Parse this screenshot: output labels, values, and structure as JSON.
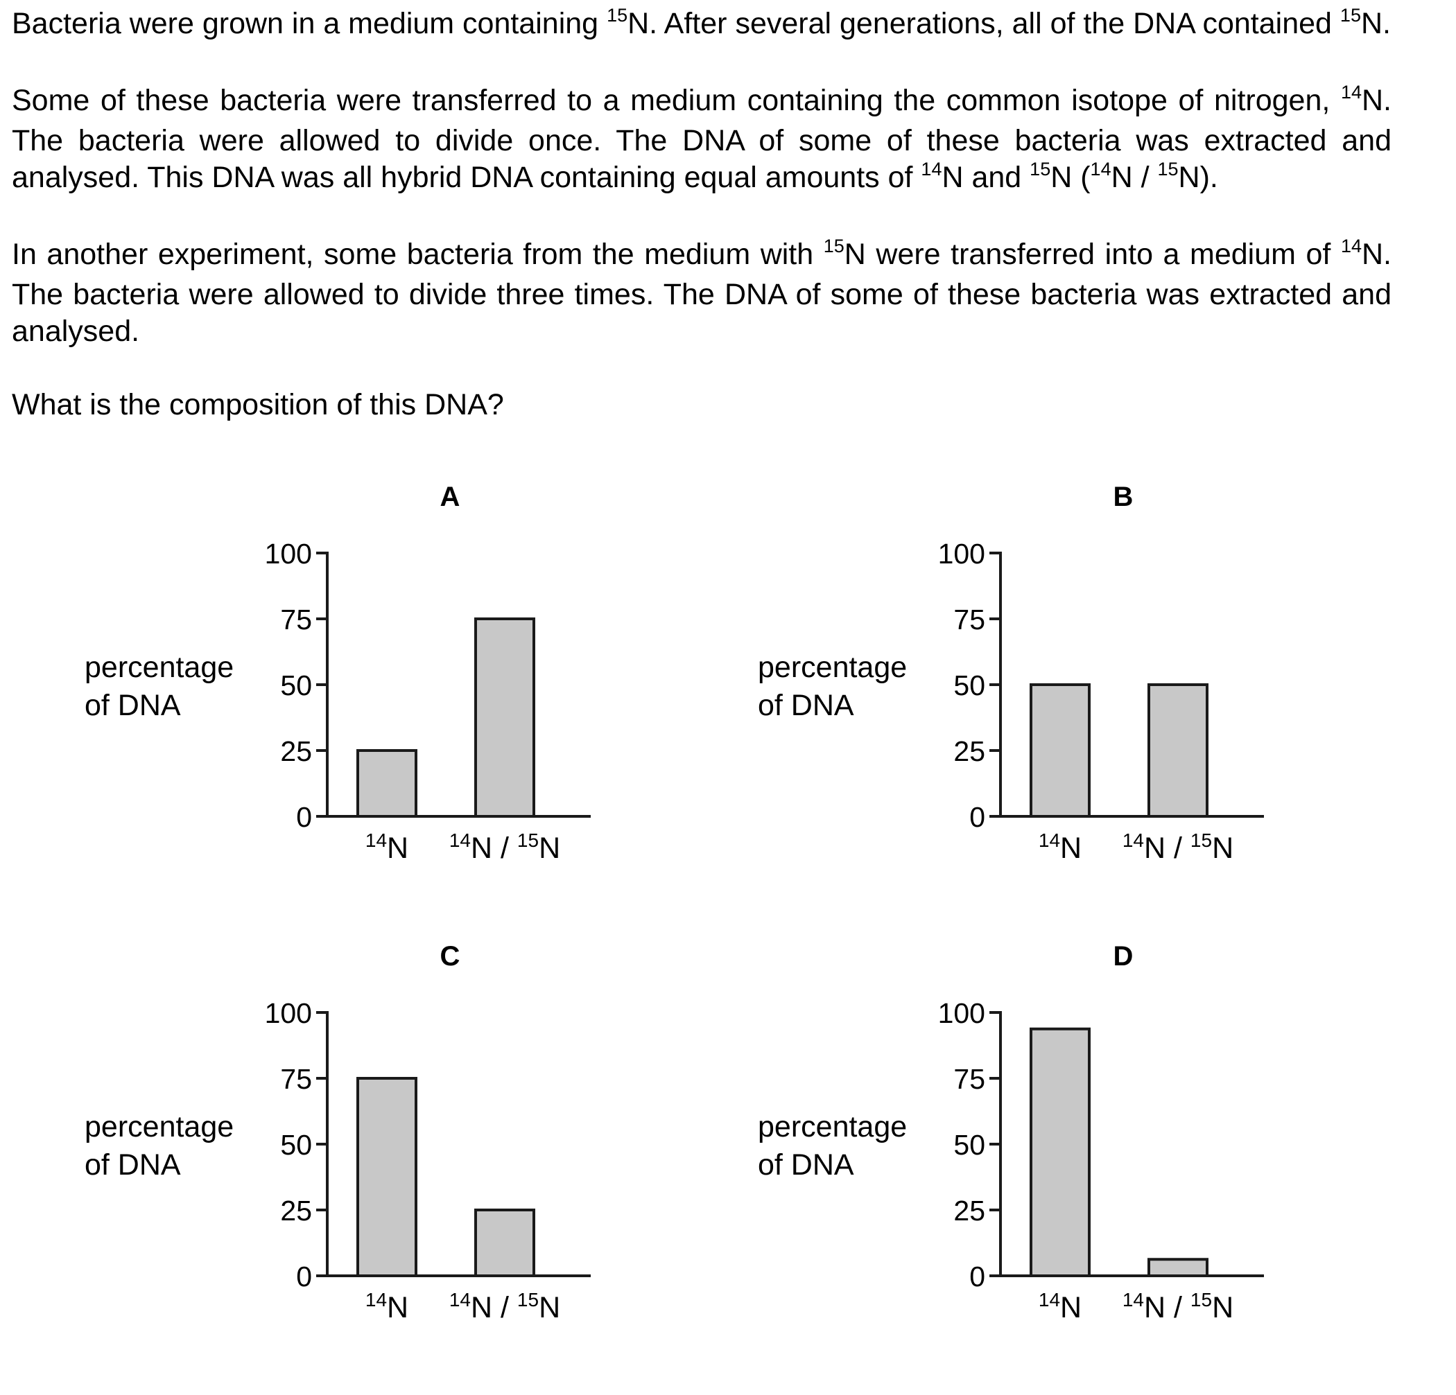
{
  "question": {
    "paragraphs": [
      {
        "id": "p1",
        "runs": [
          {
            "t": "Bacteria were grown in a medium containing "
          },
          {
            "sup": "15"
          },
          {
            "t": "N. After several generations, all of the DNA contained "
          },
          {
            "sup": "15"
          },
          {
            "t": "N."
          }
        ]
      },
      {
        "id": "p2",
        "runs": [
          {
            "t": "Some of these bacteria were transferred to a medium containing the common isotope of nitrogen, "
          },
          {
            "sup": "14"
          },
          {
            "t": "N. The bacteria were allowed to divide once. The DNA of some of these bacteria was extracted and analysed. This DNA was all hybrid DNA containing equal amounts of "
          },
          {
            "sup": "14"
          },
          {
            "t": "N and "
          },
          {
            "sup": "15"
          },
          {
            "t": "N ("
          },
          {
            "sup": "14"
          },
          {
            "t": "N / "
          },
          {
            "sup": "15"
          },
          {
            "t": "N)."
          }
        ]
      },
      {
        "id": "p3",
        "runs": [
          {
            "t": "In another experiment, some bacteria from the medium with "
          },
          {
            "sup": "15"
          },
          {
            "t": "N were transferred into a medium of "
          },
          {
            "sup": "14"
          },
          {
            "t": "N. The bacteria were allowed to divide three times. The DNA of some of these bacteria was extracted and analysed."
          }
        ]
      }
    ],
    "prompt": "What is the composition of this DNA?"
  },
  "colors": {
    "bar_fill": "#c8c8c8",
    "stroke": "#1a1a1a"
  },
  "chart_data": [
    {
      "type": "bar",
      "title": "A",
      "ylabel": [
        "percentage",
        "of DNA"
      ],
      "ylim": [
        0,
        100
      ],
      "yticks": [
        0,
        25,
        50,
        75,
        100
      ],
      "categories": [
        {
          "sup": "14",
          "base": "N"
        },
        {
          "sup1": "14",
          "mid": "N / ",
          "sup2": "15",
          "base": "N"
        }
      ],
      "values": [
        25,
        75
      ]
    },
    {
      "type": "bar",
      "title": "B",
      "ylabel": [
        "percentage",
        "of DNA"
      ],
      "ylim": [
        0,
        100
      ],
      "yticks": [
        0,
        25,
        50,
        75,
        100
      ],
      "categories": [
        {
          "sup": "14",
          "base": "N"
        },
        {
          "sup1": "14",
          "mid": "N / ",
          "sup2": "15",
          "base": "N"
        }
      ],
      "values": [
        50,
        50
      ]
    },
    {
      "type": "bar",
      "title": "C",
      "ylabel": [
        "percentage",
        "of DNA"
      ],
      "ylim": [
        0,
        100
      ],
      "yticks": [
        0,
        25,
        50,
        75,
        100
      ],
      "categories": [
        {
          "sup": "14",
          "base": "N"
        },
        {
          "sup1": "14",
          "mid": "N / ",
          "sup2": "15",
          "base": "N"
        }
      ],
      "values": [
        75,
        25
      ]
    },
    {
      "type": "bar",
      "title": "D",
      "ylabel": [
        "percentage",
        "of DNA"
      ],
      "ylim": [
        0,
        100
      ],
      "yticks": [
        0,
        25,
        50,
        75,
        100
      ],
      "categories": [
        {
          "sup": "14",
          "base": "N"
        },
        {
          "sup1": "14",
          "mid": "N / ",
          "sup2": "15",
          "base": "N"
        }
      ],
      "values": [
        93.75,
        6.25
      ]
    }
  ]
}
